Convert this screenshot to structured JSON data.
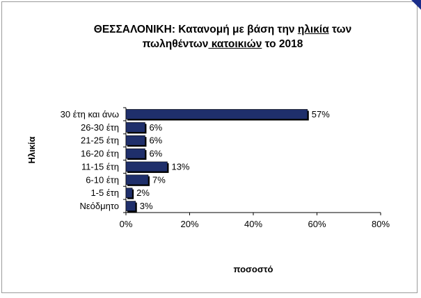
{
  "chart_data": {
    "type": "bar",
    "orientation": "horizontal",
    "title_parts": [
      {
        "text": "ΘΕΣΣΑΛΟΝΙΚΗ:  Κατανομή με βάση την ",
        "underline": false
      },
      {
        "text": "ηλικία",
        "underline": true
      },
      {
        "text": " των",
        "underline": false
      },
      {
        "text": "break",
        "underline": false,
        "is_break": true
      },
      {
        "text": "πωληθέντων",
        "underline": false
      },
      {
        "text": " κατοικιών",
        "underline": true
      },
      {
        "text": " το 2018",
        "underline": false
      }
    ],
    "xlabel": "ποσοστό",
    "ylabel": "Ηλικία",
    "categories": [
      "30 έτη και άνω",
      "26-30 έτη",
      "21-25 έτη",
      "16-20 έτη",
      "11-15 έτη",
      "6-10 έτη",
      "1-5 έτη",
      "Νεόδμητο"
    ],
    "values": [
      57,
      6,
      6,
      6,
      13,
      7,
      2,
      3
    ],
    "data_labels": [
      "57%",
      "6%",
      "6%",
      "6%",
      "13%",
      "7%",
      "2%",
      "3%"
    ],
    "xlim": [
      0,
      80
    ],
    "x_ticks": [
      0,
      20,
      40,
      60,
      80
    ],
    "x_tick_labels": [
      "0%",
      "20%",
      "40%",
      "60%",
      "80%"
    ],
    "bar_color": "#1f2f6b",
    "grid": false,
    "legend": "none"
  }
}
